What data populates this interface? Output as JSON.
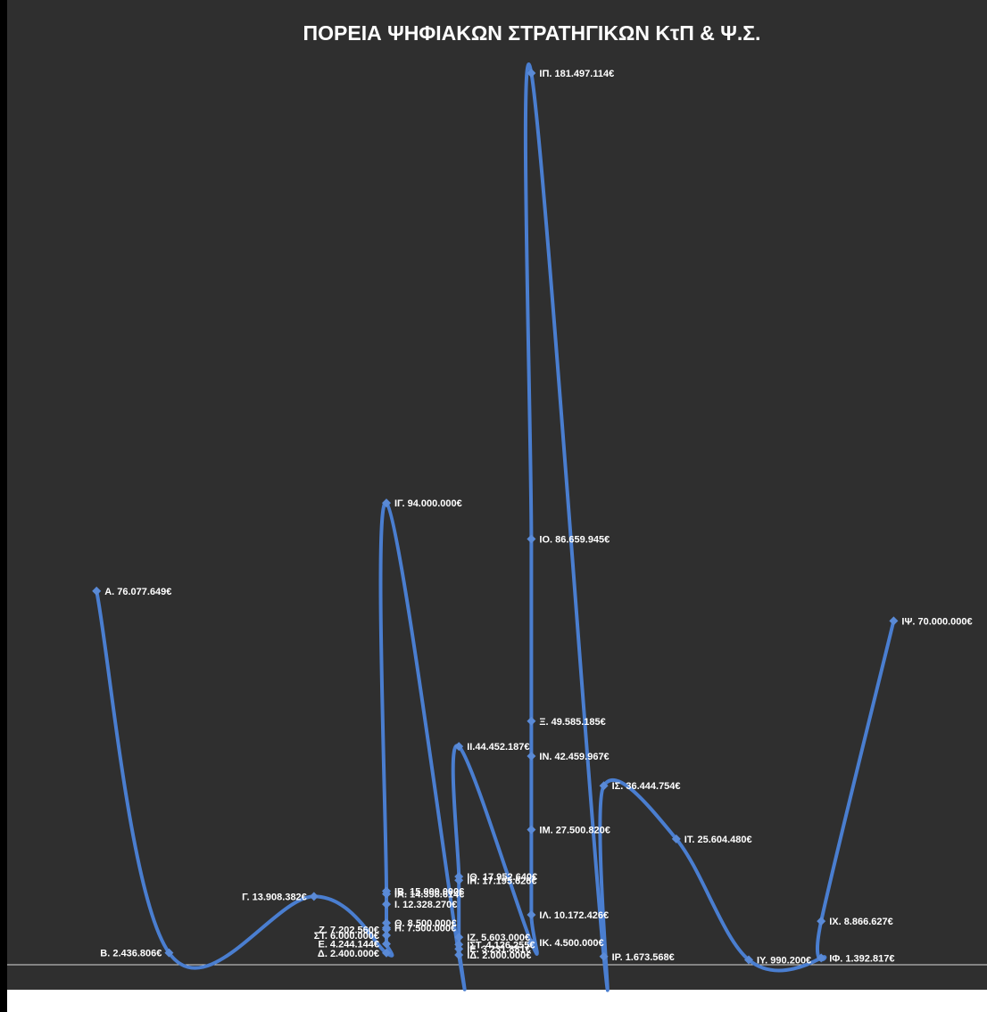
{
  "colors": {
    "background": "#2f2f2f",
    "left_bar": "#000000",
    "line": "#4a7ed0",
    "marker": "#5a8ad6",
    "text": "#ffffff",
    "axis": "#d9d9d9"
  },
  "chart_data": {
    "type": "scatter",
    "title": "ΠΟΡΕΙΑ ΨΗΦΙΑΚΩΝ ΣΤΡΑΤΗΓΙΚΩΝ ΚτΠ & Ψ.Σ.",
    "xlabel": "",
    "ylabel": "",
    "xlim": [
      1998,
      2011.4
    ],
    "ylim": [
      0,
      185000000
    ],
    "x_ticks": [
      "1998",
      "2000",
      "2002",
      "2004",
      "2006",
      "2008",
      "2010"
    ],
    "grid": false,
    "legend": "none",
    "smoothed_line": true,
    "points": [
      {
        "x": 1999.0,
        "y": 76077649,
        "label": "Α. 76.077.649€"
      },
      {
        "x": 2000.0,
        "y": 2436806,
        "label": "Β. 2.436.806€"
      },
      {
        "x": 2002.0,
        "y": 13908382,
        "label": "Γ. 13.908.382€"
      },
      {
        "x": 2003.0,
        "y": 2400000,
        "label": "Δ. 2.400.000€"
      },
      {
        "x": 2003.0,
        "y": 4244144,
        "label": "Ε. 4.244.144€"
      },
      {
        "x": 2003.0,
        "y": 6000000,
        "label": "ΣΤ. 6.000.000€"
      },
      {
        "x": 2003.0,
        "y": 7202560,
        "label": "Ζ. 7.202.560€"
      },
      {
        "x": 2003.0,
        "y": 7500000,
        "label": "Η. 7.500.000€"
      },
      {
        "x": 2003.0,
        "y": 8500000,
        "label": "Θ. 8.500.000€"
      },
      {
        "x": 2003.0,
        "y": 12328270,
        "label": "Ι. 12.328.270€"
      },
      {
        "x": 2003.0,
        "y": 14398614,
        "label": "ΙΑ. 14.398.614€"
      },
      {
        "x": 2003.0,
        "y": 15000000,
        "label": "ΙΒ. 15.000.000€"
      },
      {
        "x": 2003.0,
        "y": 94000000,
        "label": "ΙΓ. 94.000.000€"
      },
      {
        "x": 2004.0,
        "y": 2000000,
        "label": "ΙΔ. 2.000.000€"
      },
      {
        "x": 2004.0,
        "y": 3231881,
        "label": "ΙΕ. 3.231.881€"
      },
      {
        "x": 2004.0,
        "y": 4126255,
        "label": "ΙΣΤ. 4.126.255€"
      },
      {
        "x": 2004.0,
        "y": 5603000,
        "label": "ΙΖ. 5.603.000€"
      },
      {
        "x": 2004.0,
        "y": 17195626,
        "label": "ΙΗ. 17.195.626€"
      },
      {
        "x": 2004.0,
        "y": 17952640,
        "label": "ΙΘ. 17.952.640€"
      },
      {
        "x": 2004.0,
        "y": 44452187,
        "label": "ΙΙ.44.452.187€"
      },
      {
        "x": 2005.0,
        "y": 4500000,
        "label": "ΙΚ. 4.500.000€"
      },
      {
        "x": 2005.0,
        "y": 10172426,
        "label": "ΙΛ. 10.172.426€"
      },
      {
        "x": 2005.0,
        "y": 27500820,
        "label": "ΙΜ. 27.500.820€"
      },
      {
        "x": 2005.0,
        "y": 42459967,
        "label": "ΙΝ. 42.459.967€"
      },
      {
        "x": 2005.0,
        "y": 49585185,
        "label": "Ξ. 49.585.185€"
      },
      {
        "x": 2005.0,
        "y": 86659945,
        "label": "ΙΟ. 86.659.945€"
      },
      {
        "x": 2005.0,
        "y": 181497114,
        "label": "ΙΠ. 181.497.114€"
      },
      {
        "x": 2006.0,
        "y": 1673568,
        "label": "ΙΡ. 1.673.568€"
      },
      {
        "x": 2006.0,
        "y": 36444754,
        "label": "ΙΣ. 36.444.754€"
      },
      {
        "x": 2007.0,
        "y": 25604480,
        "label": "ΙΤ. 25.604.480€"
      },
      {
        "x": 2008.0,
        "y": 990200,
        "label": "ΙΥ. 990.200€"
      },
      {
        "x": 2009.0,
        "y": 1392817,
        "label": "ΙΦ. 1.392.817€"
      },
      {
        "x": 2009.0,
        "y": 8866627,
        "label": "ΙΧ. 8.866.627€"
      },
      {
        "x": 2010.0,
        "y": 70000000,
        "label": "ΙΨ. 70.000.000€"
      }
    ],
    "line_order": [
      "Α",
      "Β",
      "Γ",
      "Δ",
      "Ε",
      "ΣΤ",
      "Ζ",
      "Η",
      "Θ",
      "Ι",
      "ΙΑ",
      "ΙΒ",
      "ΙΓ",
      "ΙΔ",
      "ΙΕ",
      "ΙΣΤ",
      "ΙΖ",
      "ΙΗ",
      "ΙΘ",
      "ΙΙ",
      "ΙΚ",
      "ΙΛ",
      "ΙΜ",
      "ΙΝ",
      "Ξ",
      "ΙΟ",
      "ΙΠ",
      "ΙΡ",
      "ΙΣ",
      "ΙΤ",
      "ΙΥ",
      "ΙΦ",
      "ΙΧ",
      "ΙΨ"
    ]
  }
}
